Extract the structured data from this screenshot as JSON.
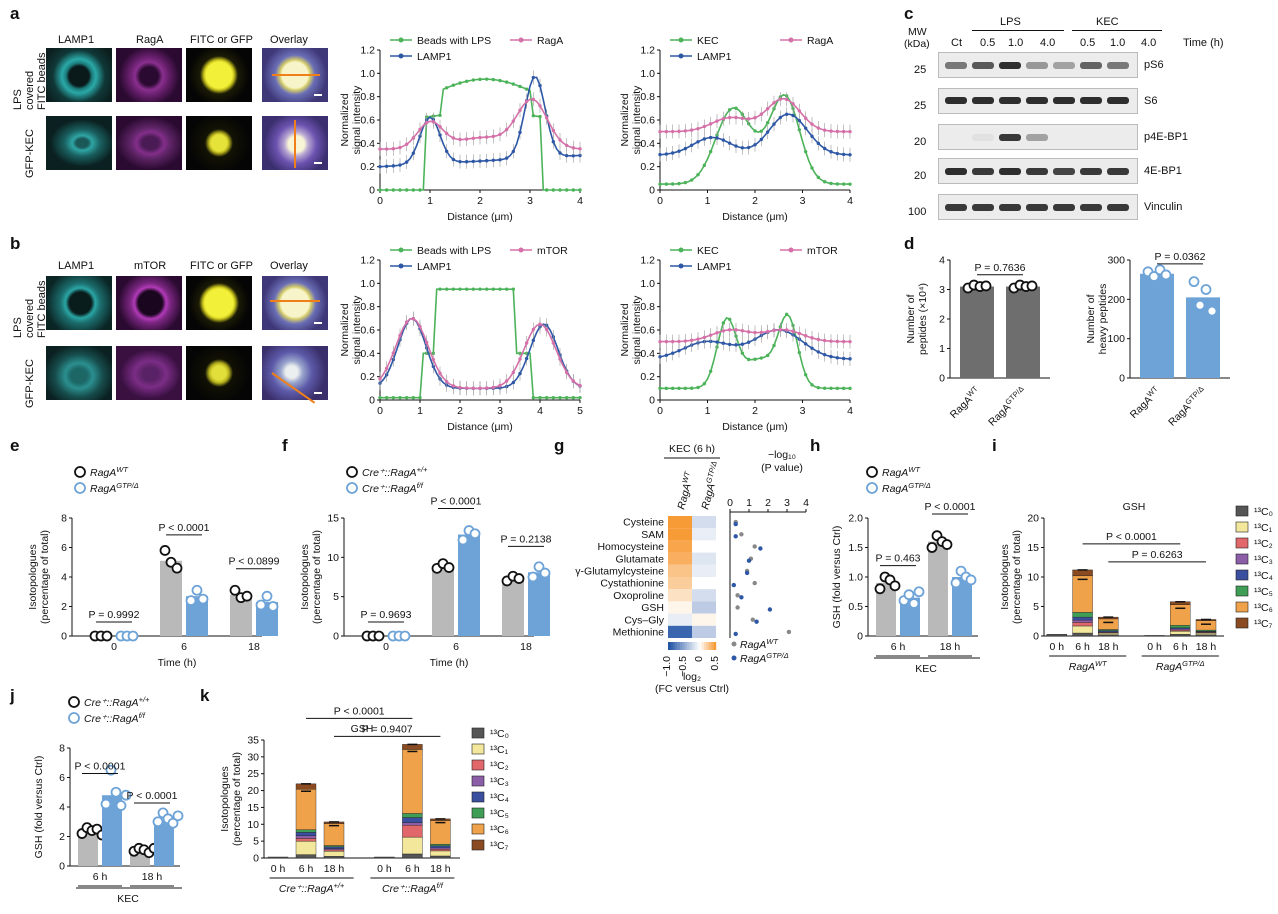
{
  "panel_labels": {
    "a": "a",
    "b": "b",
    "c": "c",
    "d": "d",
    "e": "e",
    "f": "f",
    "g": "g",
    "h": "h",
    "i": "i",
    "j": "j",
    "k": "k"
  },
  "a": {
    "cols": [
      "LAMP1",
      "RagA",
      "FITC or GFP",
      "Overlay"
    ],
    "rows": [
      "LPS covered FITC beads",
      "GFP-KEC"
    ],
    "plot1": {
      "legend": [
        "Beads with LPS",
        "LAMP1",
        "RagA"
      ]
    },
    "plot2": {
      "legend": [
        "KEC",
        "LAMP1",
        "RagA"
      ]
    }
  },
  "b": {
    "cols": [
      "LAMP1",
      "mTOR",
      "FITC or GFP",
      "Overlay"
    ],
    "rows": [
      "LPS covered FITC beads",
      "GFP-KEC"
    ],
    "plot1": {
      "legend": [
        "Beads with LPS",
        "LAMP1",
        "mTOR"
      ]
    },
    "plot2": {
      "legend": [
        "KEC",
        "LAMP1",
        "mTOR"
      ]
    }
  },
  "profile_axes": {
    "ylabel1": "Normalized",
    "ylabel2": "signal intensity",
    "xlabel": "Distance (μm)",
    "yticks": [
      "0",
      "0.2",
      "0.4",
      "0.6",
      "0.8",
      "1.0",
      "1.2"
    ]
  },
  "c": {
    "mw_label1": "MW",
    "mw_label2": "(kDa)",
    "groups": [
      "LPS",
      "KEC"
    ],
    "lanes": [
      "Ct",
      "0.5",
      "1.0",
      "4.0",
      "0.5",
      "1.0",
      "4.0"
    ],
    "time_label": "Time (h)",
    "blots": [
      {
        "name": "pS6",
        "mw": "25"
      },
      {
        "name": "S6",
        "mw": "25"
      },
      {
        "name": "p4E-BP1",
        "mw": "20"
      },
      {
        "name": "4E-BP1",
        "mw": "20"
      },
      {
        "name": "Vinculin",
        "mw": "100"
      }
    ]
  },
  "d": {
    "left": {
      "ylabel1": "Number of",
      "ylabel2": "peptides (×10⁴)",
      "p": "P = 0.7636",
      "yticks": [
        "0",
        "1",
        "2",
        "3",
        "4"
      ]
    },
    "right": {
      "ylabel1": "Number of",
      "ylabel2": "heavy peptides",
      "p": "P = 0.0362",
      "yticks": [
        "0",
        "100",
        "200",
        "300"
      ]
    },
    "xcats": [
      "RagA",
      "RagA"
    ],
    "xsups": [
      "WT",
      "GTP/Δ"
    ]
  },
  "e": {
    "legend": [
      "RagA",
      "RagA"
    ],
    "legend_sup": [
      "WT",
      "GTP/Δ"
    ],
    "ylabel1": "Isotopologues",
    "ylabel2": "(percentage of total)",
    "xlabel": "Time (h)",
    "xcats": [
      "0",
      "6",
      "18"
    ],
    "yticks": [
      "0",
      "2",
      "4",
      "6",
      "8"
    ],
    "p": [
      "P = 0.9992",
      "P < 0.0001",
      "P < 0.0899"
    ]
  },
  "f": {
    "legend": [
      "Cre⁺::RagA",
      "Cre⁺::RagA"
    ],
    "legend_sup": [
      "+/+",
      "f/f"
    ],
    "ylabel1": "Isotopologues",
    "ylabel2": "(percentage of total)",
    "xlabel": "Time (h)",
    "xcats": [
      "0",
      "6",
      "18"
    ],
    "yticks": [
      "0",
      "5",
      "10",
      "15"
    ],
    "p": [
      "P = 0.9693",
      "P < 0.0001",
      "P = 0.2138"
    ]
  },
  "g": {
    "title": "KEC (6 h)",
    "cols": [
      "RagA",
      "RagA"
    ],
    "col_sups": [
      "WT",
      "GTP/Δ"
    ],
    "rows": [
      "Cysteine",
      "SAM",
      "Homocysteine",
      "Glutamate",
      "γ-Glutamylcysteine",
      "Cystathionine",
      "Oxoproline",
      "GSH",
      "Cys–Gly",
      "Methionine"
    ],
    "scale_ticks": [
      "−1.0",
      "−0.5",
      "0",
      "0.5"
    ],
    "scale_label1": "log₂",
    "scale_label2": "(FC versus Ctrl)",
    "dot_axis_label1": "−log₁₀",
    "dot_axis_label2": "(P value)",
    "dot_ticks": [
      "0",
      "1",
      "2",
      "3",
      "4"
    ],
    "dot_legend": [
      "RagA",
      "RagA"
    ],
    "dot_legend_sup": [
      "WT",
      "GTP/Δ"
    ]
  },
  "h": {
    "legend": [
      "RagA",
      "RagA"
    ],
    "legend_sup": [
      "WT",
      "GTP/Δ"
    ],
    "ylabel": "GSH (fold versus Ctrl)",
    "yticks": [
      "0",
      "0.5",
      "1.0",
      "1.5",
      "2.0"
    ],
    "xcats": [
      "6 h",
      "18 h"
    ],
    "xlabel": "KEC",
    "p": [
      "P = 0.463",
      "P < 0.0001"
    ]
  },
  "i": {
    "title": "GSH",
    "ylabel1": "Isotopologues",
    "ylabel2": "(percentage of total)",
    "yticks": [
      "0",
      "5",
      "10",
      "15",
      "20"
    ],
    "xcats": [
      "0 h",
      "6 h",
      "18 h",
      "0 h",
      "6 h",
      "18 h"
    ],
    "groups": [
      "RagA",
      "RagA"
    ],
    "group_sups": [
      "WT",
      "GTP/Δ"
    ],
    "p": [
      "P < 0.0001",
      "P = 0.6263"
    ],
    "legend": [
      "¹³C₀",
      "¹³C₁",
      "¹³C₂",
      "¹³C₃",
      "¹³C₄",
      "¹³C₅",
      "¹³C₆",
      "¹³C₇"
    ]
  },
  "j": {
    "legend": [
      "Cre⁺::RagA",
      "Cre⁺::RagA"
    ],
    "legend_sup": [
      "+/+",
      "f/f"
    ],
    "ylabel": "GSH (fold versus Ctrl)",
    "yticks": [
      "0",
      "2",
      "4",
      "6",
      "8"
    ],
    "xcats": [
      "6 h",
      "18 h"
    ],
    "xlabel": "KEC",
    "p": [
      "P < 0.0001",
      "P < 0.0001"
    ]
  },
  "k": {
    "title": "GSH",
    "ylabel1": "Isotopologues",
    "ylabel2": "(percentage of total)",
    "yticks": [
      "0",
      "5",
      "10",
      "15",
      "20",
      "25",
      "30",
      "35"
    ],
    "xcats": [
      "0 h",
      "6 h",
      "18 h",
      "0 h",
      "6 h",
      "18 h"
    ],
    "groups": [
      "Cre⁺::RagA",
      "Cre⁺::RagA"
    ],
    "group_sups": [
      "+/+",
      "f/f"
    ],
    "p": [
      "P < 0.0001",
      "P = 0.9407"
    ],
    "legend": [
      "¹³C₀",
      "¹³C₁",
      "¹³C₂",
      "¹³C₃",
      "¹³C₄",
      "¹³C₅",
      "¹³C₆",
      "¹³C₇"
    ]
  },
  "colors": {
    "green": "#4cb35a",
    "blue": "#2e58a6",
    "pink": "#d571a8",
    "grey": "#b9b9b9",
    "lightblue": "#6ea3d8",
    "darkgrey": "#6e6e6e"
  },
  "chart_data": [
    {
      "type": "bar",
      "id": "d-left",
      "categories": [
        "RagA WT",
        "RagA GTP/Δ"
      ],
      "values": [
        3.1,
        3.1
      ],
      "ylabel": "Number of peptides (×10⁴)",
      "ylim": [
        0,
        4
      ]
    },
    {
      "type": "bar",
      "id": "d-right",
      "categories": [
        "RagA WT",
        "RagA GTP/Δ"
      ],
      "values": [
        265,
        205
      ],
      "ylabel": "Number of heavy peptides",
      "ylim": [
        0,
        300
      ]
    },
    {
      "type": "bar",
      "id": "e",
      "categories": [
        "0",
        "6",
        "18"
      ],
      "series": [
        {
          "name": "RagA WT",
          "values": [
            0,
            5.1,
            2.8
          ]
        },
        {
          "name": "RagA GTP/Δ",
          "values": [
            0,
            2.7,
            2.3
          ]
        }
      ],
      "xlabel": "Time (h)",
      "ylabel": "Isotopologues (percentage of total)",
      "ylim": [
        0,
        8
      ]
    },
    {
      "type": "bar",
      "id": "f",
      "categories": [
        "0",
        "6",
        "18"
      ],
      "series": [
        {
          "name": "Cre⁺::RagA +/+",
          "values": [
            0,
            8.8,
            7.3
          ]
        },
        {
          "name": "Cre⁺::RagA f/f",
          "values": [
            0,
            12.9,
            8.1
          ]
        }
      ],
      "xlabel": "Time (h)",
      "ylabel": "Isotopologues (percentage of total)",
      "ylim": [
        0,
        15
      ]
    },
    {
      "type": "bar",
      "id": "h",
      "categories": [
        "6 h",
        "18 h"
      ],
      "series": [
        {
          "name": "RagA WT",
          "values": [
            0.9,
            1.6
          ]
        },
        {
          "name": "RagA GTP/Δ",
          "values": [
            0.65,
            1.0
          ]
        }
      ],
      "ylabel": "GSH (fold versus Ctrl)",
      "ylim": [
        0,
        2.0
      ]
    },
    {
      "type": "bar",
      "id": "j",
      "categories": [
        "6 h",
        "18 h"
      ],
      "series": [
        {
          "name": "Cre⁺::RagA +/+",
          "values": [
            2.4,
            1.1
          ]
        },
        {
          "name": "Cre⁺::RagA f/f",
          "values": [
            4.8,
            3.2
          ]
        }
      ],
      "ylabel": "GSH (fold versus Ctrl)",
      "ylim": [
        0,
        8
      ]
    },
    {
      "type": "bar",
      "id": "i",
      "stacked": true,
      "categories": [
        "0 h",
        "6 h",
        "18 h",
        "0 h",
        "6 h",
        "18 h"
      ],
      "series": [
        {
          "name": "¹³C₀",
          "values": [
            0.3,
            0.5,
            0.2,
            0.1,
            0.3,
            0.2
          ]
        },
        {
          "name": "¹³C₁",
          "values": [
            0,
            1.2,
            0.3,
            0,
            0.5,
            0.3
          ]
        },
        {
          "name": "¹³C₂",
          "values": [
            0,
            0.6,
            0.1,
            0,
            0.2,
            0.1
          ]
        },
        {
          "name": "¹³C₃",
          "values": [
            0,
            0.4,
            0.1,
            0,
            0.2,
            0.1
          ]
        },
        {
          "name": "¹³C₄",
          "values": [
            0,
            0.5,
            0.2,
            0,
            0.2,
            0.1
          ]
        },
        {
          "name": "¹³C₅",
          "values": [
            0,
            0.8,
            0.2,
            0,
            0.4,
            0.2
          ]
        },
        {
          "name": "¹³C₆",
          "values": [
            0,
            6.2,
            1.8,
            0,
            3.5,
            1.6
          ]
        },
        {
          "name": "¹³C₇",
          "values": [
            0,
            1.0,
            0.3,
            0,
            0.5,
            0.2
          ]
        }
      ],
      "ylabel": "Isotopologues (percentage of total)",
      "ylim": [
        0,
        20
      ]
    },
    {
      "type": "bar",
      "id": "k",
      "stacked": true,
      "categories": [
        "0 h",
        "6 h",
        "18 h",
        "0 h",
        "6 h",
        "18 h"
      ],
      "series": [
        {
          "name": "¹³C₀",
          "values": [
            0.3,
            1.0,
            0.5,
            0.3,
            1.2,
            0.6
          ]
        },
        {
          "name": "¹³C₁",
          "values": [
            0,
            4.0,
            1.5,
            0,
            5.0,
            1.5
          ]
        },
        {
          "name": "¹³C₂",
          "values": [
            0,
            0.8,
            0.4,
            0,
            3.5,
            0.5
          ]
        },
        {
          "name": "¹³C₃",
          "values": [
            0,
            0.8,
            0.4,
            0,
            0.8,
            0.4
          ]
        },
        {
          "name": "¹³C₄",
          "values": [
            0,
            1.0,
            0.5,
            0,
            1.5,
            0.6
          ]
        },
        {
          "name": "¹³C₅",
          "values": [
            0,
            0.8,
            0.4,
            0,
            1.2,
            0.5
          ]
        },
        {
          "name": "¹³C₆",
          "values": [
            0,
            12.0,
            6.5,
            0,
            19.0,
            7.0
          ]
        },
        {
          "name": "¹³C₇",
          "values": [
            0,
            1.6,
            0.5,
            0,
            1.5,
            0.5
          ]
        }
      ],
      "ylabel": "Isotopologues (percentage of total)",
      "ylim": [
        0,
        35
      ]
    },
    {
      "type": "heatmap",
      "id": "g",
      "rows": [
        "Cysteine",
        "SAM",
        "Homocysteine",
        "Glutamate",
        "γ-Glutamylcysteine",
        "Cystathionine",
        "Oxoproline",
        "GSH",
        "Cys–Gly",
        "Methionine"
      ],
      "cols": [
        "RagA WT",
        "RagA GTP/Δ"
      ],
      "values": [
        [
          0.55,
          -0.2
        ],
        [
          0.5,
          -0.1
        ],
        [
          0.45,
          0.0
        ],
        [
          0.4,
          -0.15
        ],
        [
          0.3,
          -0.1
        ],
        [
          0.25,
          0.0
        ],
        [
          0.15,
          -0.2
        ],
        [
          0.05,
          -0.3
        ],
        [
          -0.1,
          0.05
        ],
        [
          -0.9,
          -0.3
        ]
      ],
      "zlim": [
        -1.0,
        0.5
      ]
    }
  ]
}
